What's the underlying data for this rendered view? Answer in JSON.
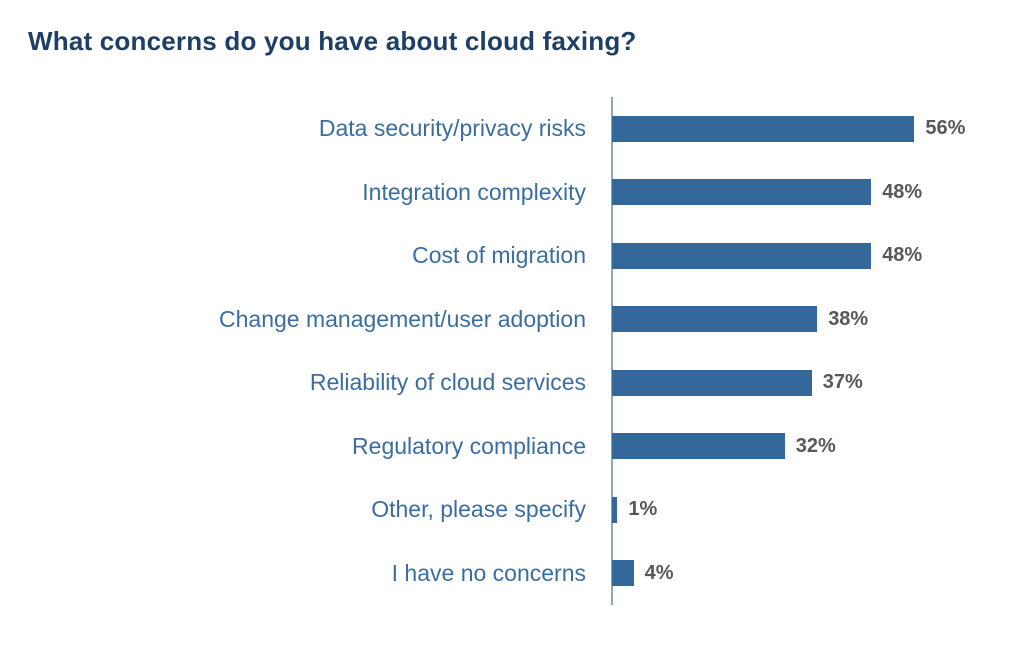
{
  "title": "What concerns do you have about cloud faxing?",
  "colors": {
    "title_text": "#1d3f66",
    "bar_fill": "#35689a",
    "category_text": "#3a6da1",
    "value_text": "#56585a",
    "axis_line": "#8fa6bc",
    "background": "#ffffff"
  },
  "chart_data": {
    "type": "bar",
    "orientation": "horizontal",
    "title": "What concerns do you have about cloud faxing?",
    "categories": [
      "Data security/privacy risks",
      "Integration complexity",
      "Cost of migration",
      "Change management/user adoption",
      "Reliability of cloud services",
      "Regulatory compliance",
      "Other, please specify",
      "I have no concerns"
    ],
    "values": [
      56,
      48,
      48,
      38,
      37,
      32,
      1,
      4
    ],
    "value_labels": [
      "56%",
      "48%",
      "48%",
      "38%",
      "37%",
      "32%",
      "1%",
      "4%"
    ],
    "xlabel": "",
    "ylabel": "",
    "xlim": [
      0,
      60
    ],
    "grid": false,
    "legend": "none",
    "value_label_position": "end-of-bar"
  }
}
